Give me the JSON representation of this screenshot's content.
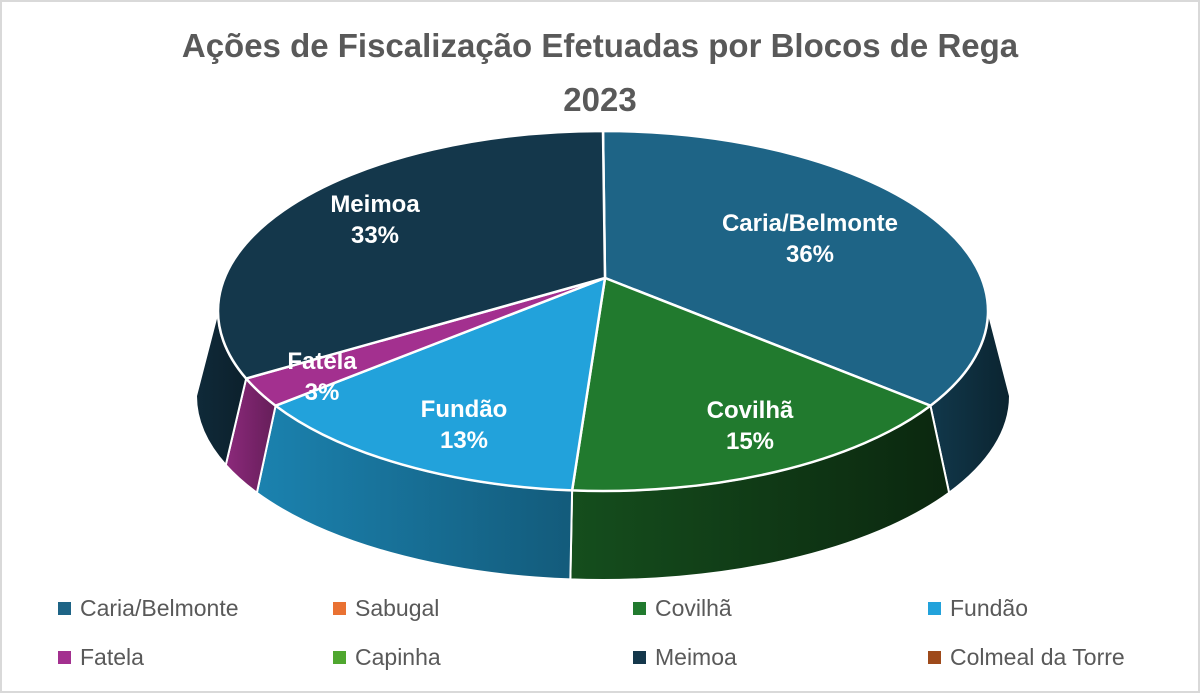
{
  "window": {
    "background": "#ffffff",
    "border_color": "#d9d9d9"
  },
  "title": {
    "line1": "Ações de Fiscalização Efetuadas por Blocos de Rega",
    "line2": "2023",
    "color": "#595959"
  },
  "chart_data": {
    "type": "pie",
    "projection": "3d",
    "start_angle_deg": 0,
    "direction": "clockwise",
    "values_are": "percent",
    "total": 100,
    "series": [
      {
        "name": "Caria/Belmonte",
        "value": 36,
        "color": "#1E6486",
        "label_shown": true
      },
      {
        "name": "Sabugal",
        "value": 0,
        "color": "#E97132",
        "label_shown": false
      },
      {
        "name": "Covilhã",
        "value": 15,
        "color": "#217A2E",
        "label_shown": true
      },
      {
        "name": "Fundão",
        "value": 13,
        "color": "#22A2DB",
        "label_shown": true
      },
      {
        "name": "Fatela",
        "value": 3,
        "color": "#A3308F",
        "label_shown": true
      },
      {
        "name": "Capinha",
        "value": 0,
        "color": "#4FA72F",
        "label_shown": false
      },
      {
        "name": "Meimoa",
        "value": 33,
        "color": "#14374B",
        "label_shown": true
      },
      {
        "name": "Colmeal da Torre",
        "value": 0,
        "color": "#9E4A1B",
        "label_shown": false
      }
    ],
    "data_labels": {
      "format": "{name} {value}%",
      "color": "#ffffff",
      "labels": [
        "Caria/Belmonte 36%",
        "Covilhã 15%",
        "Fundão 13%",
        "Fatela 3%",
        "Meimoa 33%"
      ]
    },
    "legend": {
      "position": "bottom",
      "columns": 4,
      "text_color": "#595959",
      "entries": [
        "Caria/Belmonte",
        "Sabugal",
        "Covilhã",
        "Fundão",
        "Fatela",
        "Capinha",
        "Meimoa",
        "Colmeal da Torre"
      ]
    }
  }
}
